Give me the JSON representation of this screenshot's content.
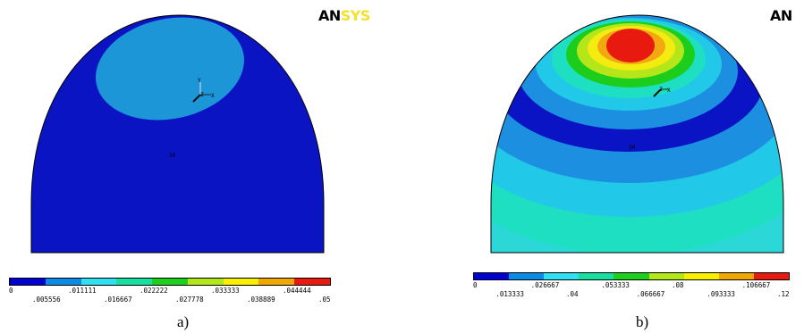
{
  "logo": {
    "prefix": "AN",
    "suffix": "SYS"
  },
  "panel_a": {
    "caption": "a)",
    "node_label": "30",
    "legend": {
      "colors": [
        "#0000d0",
        "#0b8ae6",
        "#2ee0f0",
        "#16e0a0",
        "#1cd01c",
        "#b0e81a",
        "#f8f000",
        "#f0a800",
        "#e81a10"
      ],
      "top_ticks": [
        "0",
        ".011111",
        ".022222",
        ".033333",
        ".044444"
      ],
      "bottom_ticks": [
        ".005556",
        ".016667",
        ".027778",
        ".038889",
        ".05"
      ]
    }
  },
  "panel_b": {
    "caption": "b)",
    "node_label": "30",
    "legend": {
      "colors": [
        "#0000d0",
        "#0b8ae6",
        "#2ee0f0",
        "#16e0a0",
        "#1cd01c",
        "#b0e81a",
        "#f8f000",
        "#f0a800",
        "#e81a10"
      ],
      "top_ticks": [
        "0",
        ".026667",
        ".053333",
        ".08",
        ".106667"
      ],
      "bottom_ticks": [
        ".013333",
        ".04",
        ".066667",
        ".093333",
        ".12"
      ]
    }
  }
}
